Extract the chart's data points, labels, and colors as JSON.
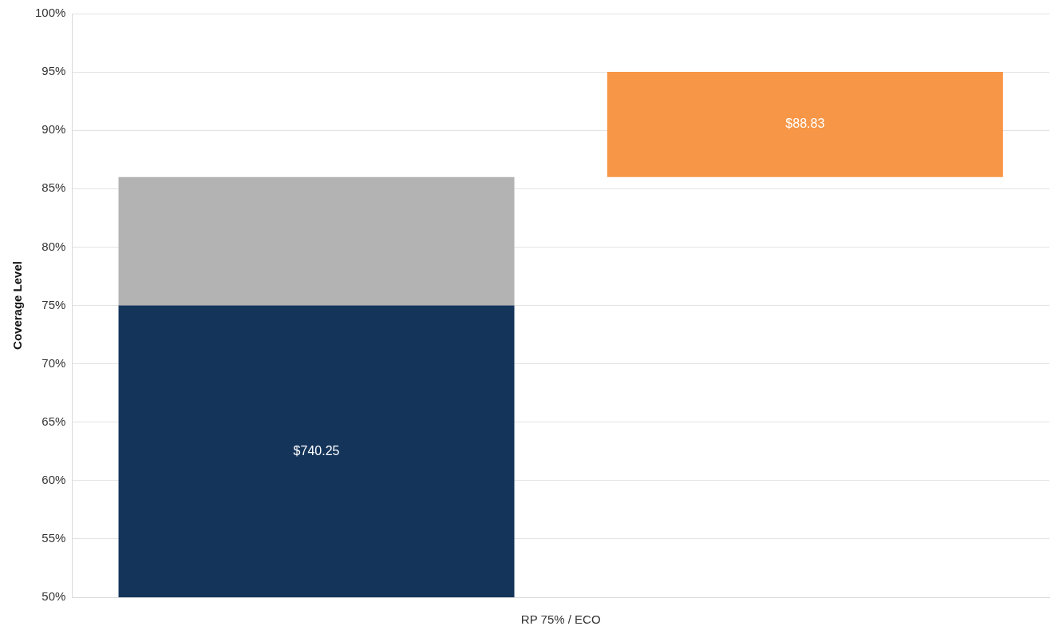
{
  "chart_data": {
    "type": "bar",
    "xlabel": "RP 75% / ECO",
    "ylabel": "Coverage Level",
    "categories": [
      null,
      null
    ],
    "stacked": true,
    "series": [
      {
        "color": "#14345a",
        "values": [
          25,
          null
        ],
        "base": [
          50,
          null
        ]
      },
      {
        "color": "#b3b3b3",
        "values": [
          11,
          null
        ],
        "base": [
          75,
          null
        ]
      },
      {
        "color": "#f79646",
        "values": [
          null,
          9
        ],
        "base": [
          null,
          86
        ]
      }
    ],
    "annotations": [
      "$740.25",
      "$88.83"
    ],
    "ylim": [
      50,
      100
    ],
    "yticks": [
      {
        "value": 50,
        "label": "50%"
      },
      {
        "value": 55,
        "label": "55%"
      },
      {
        "value": 60,
        "label": "60%"
      },
      {
        "value": 65,
        "label": "65%"
      },
      {
        "value": 70,
        "label": "70%"
      },
      {
        "value": 75,
        "label": "75%"
      },
      {
        "value": 80,
        "label": "80%"
      },
      {
        "value": 85,
        "label": "85%"
      },
      {
        "value": 90,
        "label": "90%"
      },
      {
        "value": 95,
        "label": "95%"
      },
      {
        "value": 100,
        "label": "100%"
      }
    ],
    "grid": "y",
    "legend": false
  }
}
